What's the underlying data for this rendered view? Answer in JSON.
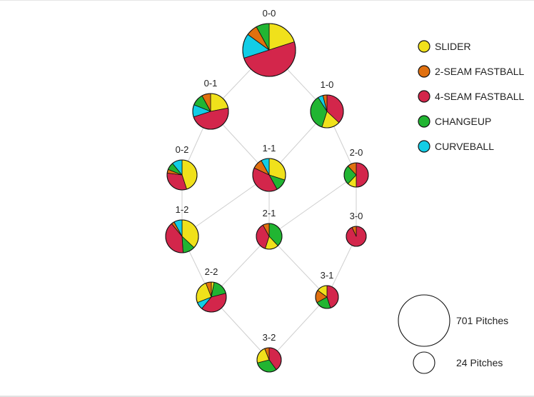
{
  "chart_data": {
    "type": "pie",
    "legend": [
      {
        "key": "slider",
        "label": "SLIDER",
        "color": "#f0e11b"
      },
      {
        "key": "two_seam",
        "label": "2-SEAM FASTBALL",
        "color": "#e0700f"
      },
      {
        "key": "four_seam",
        "label": "4-SEAM FASTBALL",
        "color": "#d3264b"
      },
      {
        "key": "changeup",
        "label": "CHANGEUP",
        "color": "#21b532"
      },
      {
        "key": "curveball",
        "label": "CURVEBALL",
        "color": "#12cde6"
      }
    ],
    "size_legend": [
      {
        "pitches": 701,
        "label": "701 Pitches"
      },
      {
        "pitches": 24,
        "label": "24 Pitches"
      }
    ],
    "counts": [
      {
        "count": "0-0",
        "pitches": 701,
        "shares": {
          "slider": 0.2,
          "four_seam": 0.5,
          "curveball": 0.15,
          "two_seam": 0.07,
          "changeup": 0.08
        }
      },
      {
        "count": "0-1",
        "pitches": 300,
        "shares": {
          "slider": 0.22,
          "four_seam": 0.48,
          "curveball": 0.11,
          "changeup": 0.11,
          "two_seam": 0.08
        }
      },
      {
        "count": "1-0",
        "pitches": 290,
        "shares": {
          "four_seam": 0.37,
          "slider": 0.18,
          "changeup": 0.36,
          "curveball": 0.05,
          "two_seam": 0.04
        }
      },
      {
        "count": "0-2",
        "pitches": 150,
        "shares": {
          "slider": 0.45,
          "four_seam": 0.32,
          "two_seam": 0.04,
          "changeup": 0.08,
          "curveball": 0.11
        }
      },
      {
        "count": "1-1",
        "pitches": 260,
        "shares": {
          "slider": 0.3,
          "changeup": 0.12,
          "four_seam": 0.4,
          "two_seam": 0.1,
          "curveball": 0.08
        }
      },
      {
        "count": "2-0",
        "pitches": 110,
        "shares": {
          "four_seam": 0.5,
          "slider": 0.12,
          "changeup": 0.26,
          "two_seam": 0.12
        }
      },
      {
        "count": "1-2",
        "pitches": 260,
        "shares": {
          "slider": 0.37,
          "changeup": 0.12,
          "four_seam": 0.4,
          "two_seam": 0.03,
          "curveball": 0.08
        }
      },
      {
        "count": "2-1",
        "pitches": 150,
        "shares": {
          "changeup": 0.38,
          "slider": 0.17,
          "four_seam": 0.37,
          "two_seam": 0.08
        }
      },
      {
        "count": "3-0",
        "pitches": 80,
        "shares": {
          "four_seam": 0.93,
          "two_seam": 0.07
        }
      },
      {
        "count": "2-2",
        "pitches": 200,
        "shares": {
          "slider": 0.25,
          "two_seam": 0.06,
          "changeup": 0.18,
          "four_seam": 0.4,
          "curveball": 0.08,
          "extra_slider": 0.03
        }
      },
      {
        "count": "3-1",
        "pitches": 110,
        "shares": {
          "four_seam": 0.45,
          "changeup": 0.22,
          "two_seam": 0.18,
          "slider": 0.15
        }
      },
      {
        "count": "3-2",
        "pitches": 130,
        "shares": {
          "four_seam": 0.4,
          "changeup": 0.31,
          "slider": 0.23,
          "two_seam": 0.06
        }
      }
    ],
    "edges": [
      [
        "0-0",
        "0-1"
      ],
      [
        "0-0",
        "1-0"
      ],
      [
        "0-1",
        "0-2"
      ],
      [
        "0-1",
        "1-1"
      ],
      [
        "1-0",
        "1-1"
      ],
      [
        "1-0",
        "2-0"
      ],
      [
        "0-2",
        "1-2"
      ],
      [
        "1-1",
        "1-2"
      ],
      [
        "1-1",
        "2-1"
      ],
      [
        "2-0",
        "2-1"
      ],
      [
        "2-0",
        "3-0"
      ],
      [
        "1-2",
        "2-2"
      ],
      [
        "2-1",
        "2-2"
      ],
      [
        "2-1",
        "3-1"
      ],
      [
        "3-0",
        "3-1"
      ],
      [
        "2-2",
        "3-2"
      ],
      [
        "3-1",
        "3-2"
      ]
    ]
  }
}
